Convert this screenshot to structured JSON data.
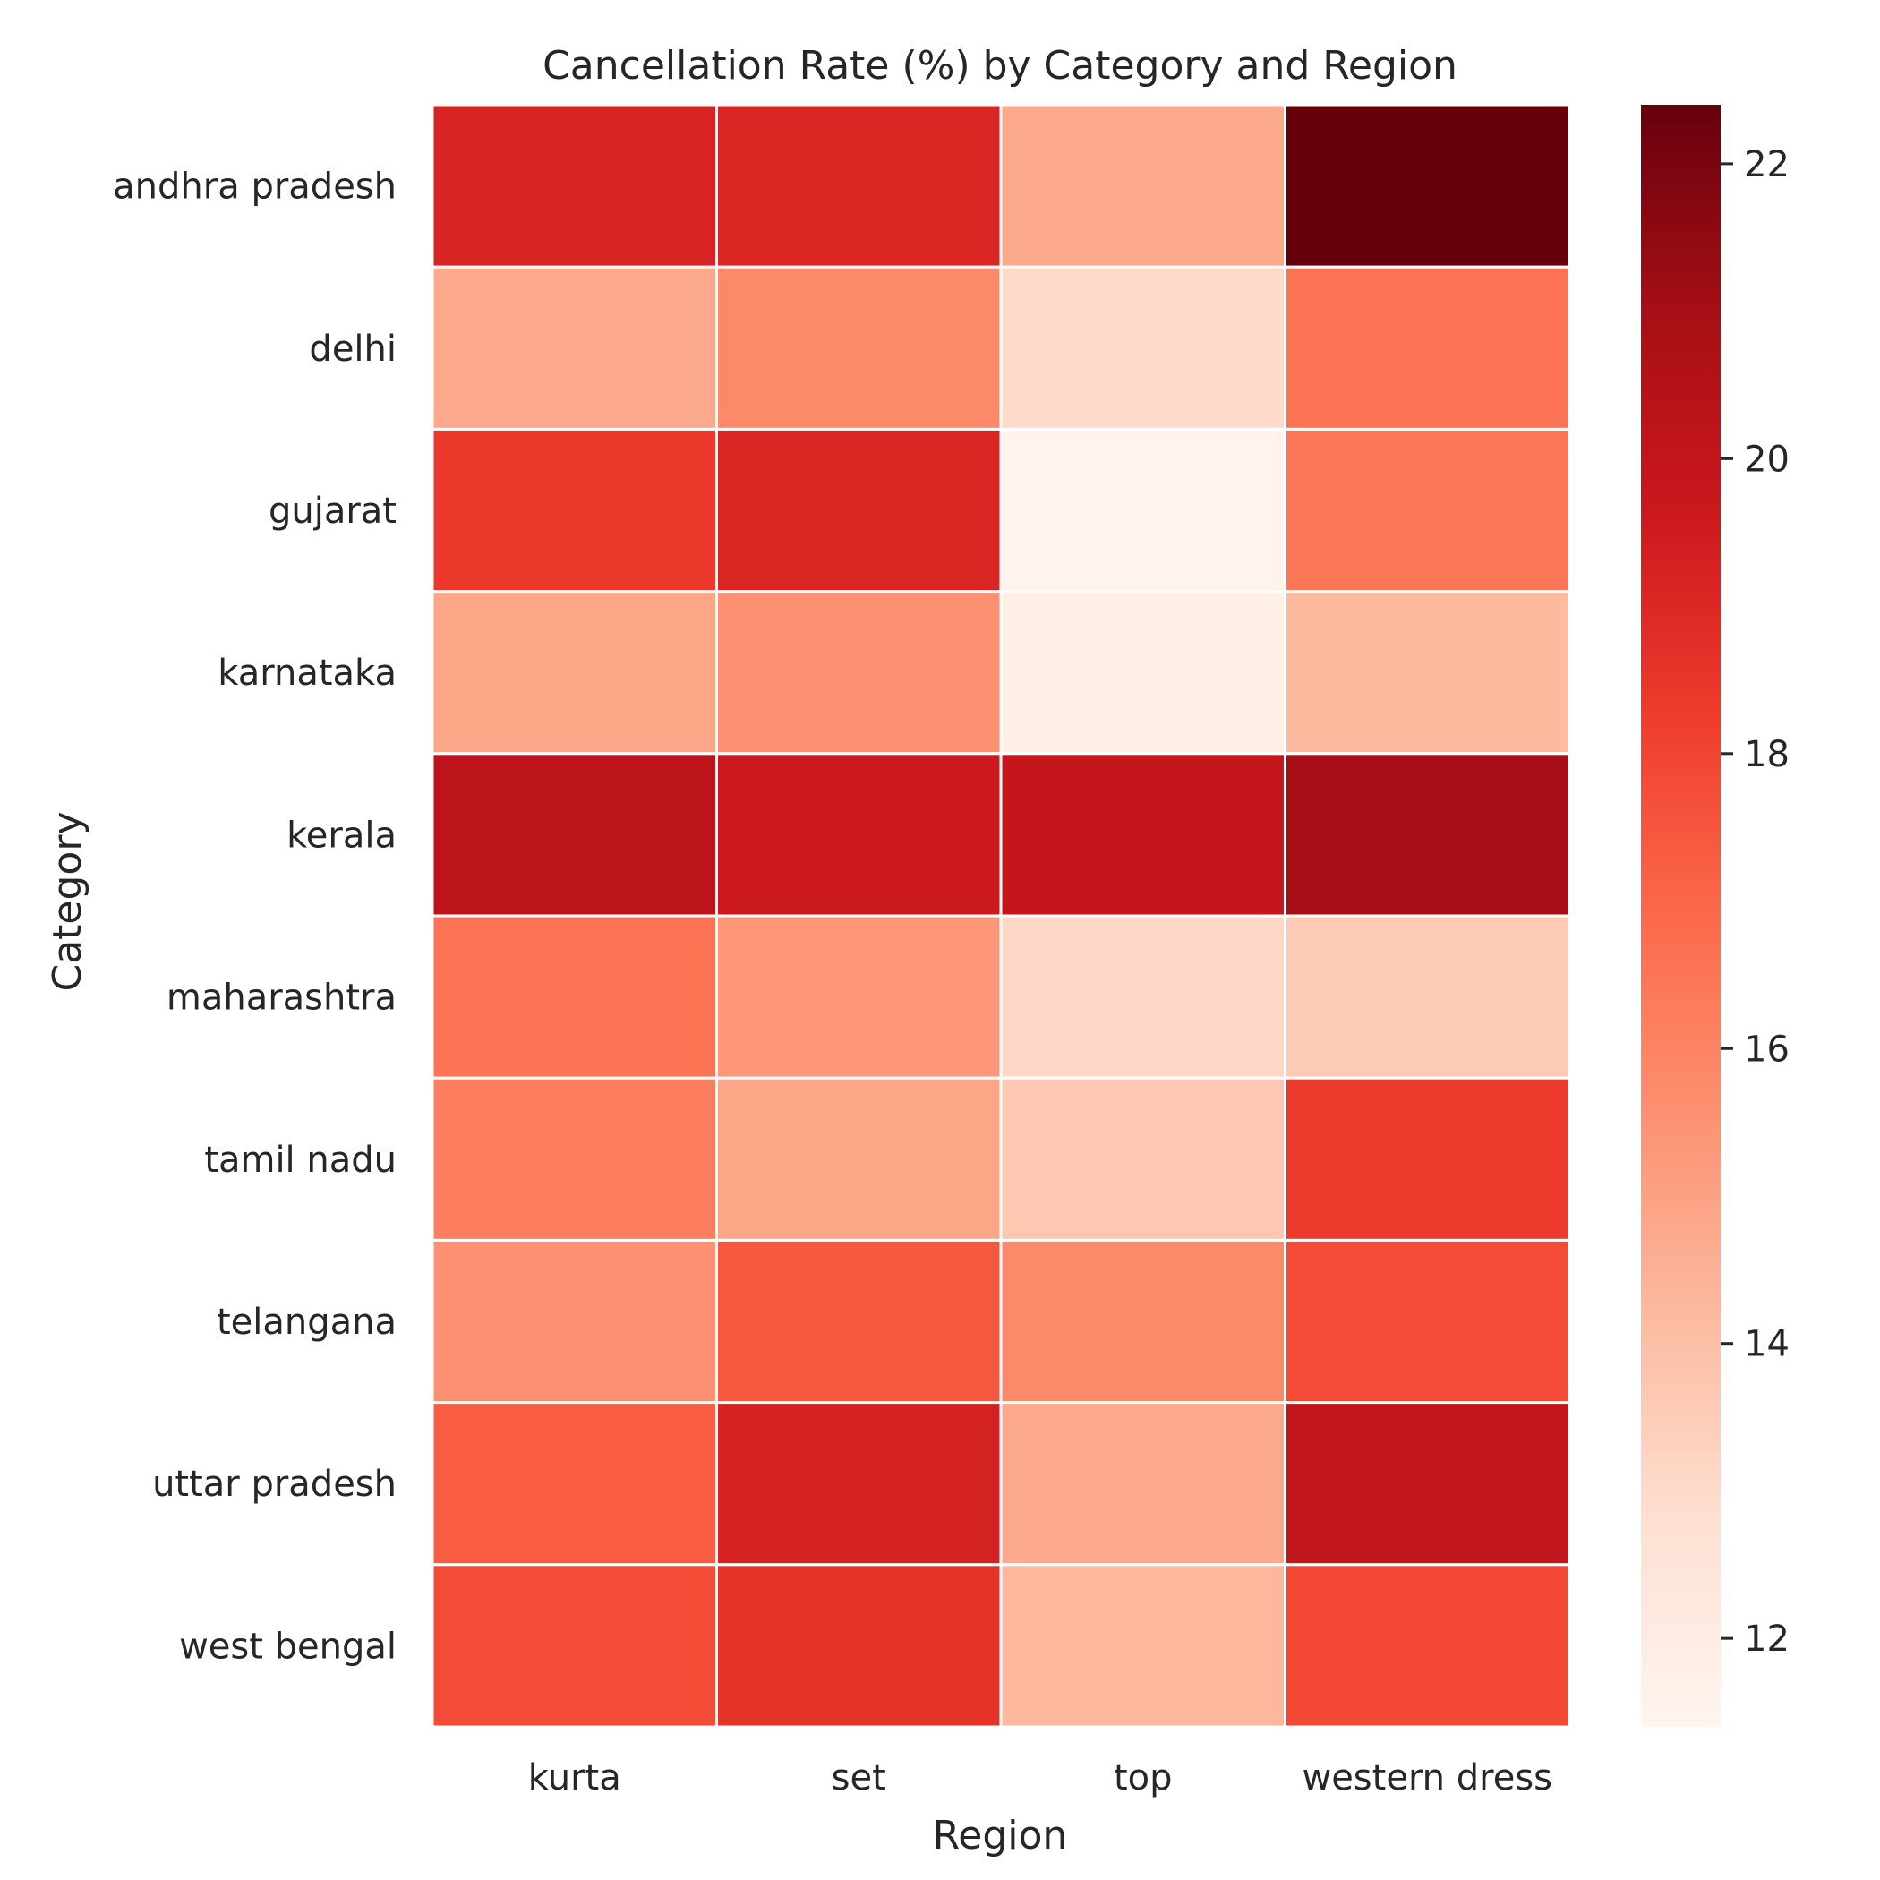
{
  "chart_data": {
    "type": "heatmap",
    "title": "Cancellation Rate (%) by Category and Region",
    "xlabel": "Region",
    "ylabel": "Category",
    "x_categories": [
      "kurta",
      "set",
      "top",
      "western dress"
    ],
    "y_categories": [
      "andhra pradesh",
      "delhi",
      "gujarat",
      "karnataka",
      "kerala",
      "maharashtra",
      "tamil nadu",
      "telangana",
      "uttar pradesh",
      "west bengal"
    ],
    "values": [
      [
        19.2,
        19.1,
        14.8,
        22.4
      ],
      [
        14.8,
        15.8,
        13.0,
        16.6
      ],
      [
        18.4,
        19.1,
        11.5,
        16.5
      ],
      [
        14.9,
        15.6,
        11.8,
        14.2
      ],
      [
        20.2,
        19.6,
        19.9,
        21.0
      ],
      [
        16.6,
        15.4,
        13.1,
        13.6
      ],
      [
        16.2,
        14.9,
        13.7,
        18.3
      ],
      [
        15.6,
        17.4,
        15.8,
        17.8
      ],
      [
        17.3,
        19.3,
        14.8,
        20.0
      ],
      [
        17.8,
        18.6,
        14.3,
        17.9
      ]
    ],
    "colorbar": {
      "colormap": "Reds",
      "range": [
        11.4,
        22.4
      ],
      "ticks": [
        12,
        14,
        16,
        18,
        20,
        22
      ]
    },
    "grid": false
  }
}
